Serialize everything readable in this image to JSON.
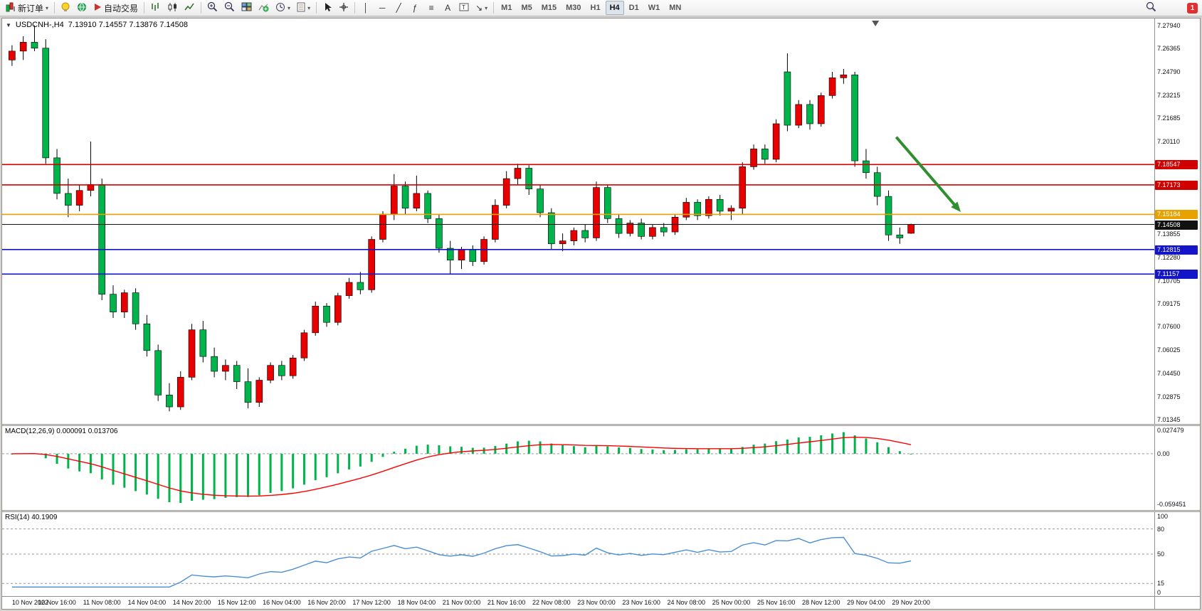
{
  "toolbar": {
    "new_order_label": "新订单",
    "auto_trading_label": "自动交易",
    "timeframes": [
      "M1",
      "M5",
      "M15",
      "M30",
      "H1",
      "H4",
      "D1",
      "W1",
      "MN"
    ],
    "active_timeframe": "H4",
    "notification_badge": "1"
  },
  "icons": {
    "dropdown_caret": "▾",
    "collapse_marker": "▼",
    "vline_tool": "│",
    "hline_tool": "─",
    "trendline_tool": "╱",
    "fibonacci_tool": "ƒ",
    "grid_tool": "≡",
    "text_tool": "A",
    "arrow_tool": "↘"
  },
  "chart": {
    "symbol_period": "USDCNH-,H4",
    "ohlc_text": "7.13910 7.14557 7.13876 7.14508"
  },
  "chart_data": {
    "type": "candlestick",
    "symbol": "USDCNH",
    "period": "H4",
    "current_candle": {
      "open": 7.1391,
      "high": 7.14557,
      "low": 7.13876,
      "close": 7.14508
    },
    "price_axis": {
      "min": 7.0105,
      "max": 7.284,
      "tick_values": [
        7.2794,
        7.26365,
        7.2479,
        7.23215,
        7.21685,
        7.2011,
        7.13855,
        7.1228,
        7.10705,
        7.09175,
        7.076,
        7.06025,
        7.0445,
        7.02875,
        7.01345
      ],
      "tick_labels": [
        "7.27940",
        "7.26365",
        "7.24790",
        "7.23215",
        "7.21685",
        "7.20110",
        "7.13855",
        "7.12280",
        "7.10705",
        "7.09175",
        "7.07600",
        "7.06025",
        "7.04450",
        "7.02875",
        "7.01345"
      ]
    },
    "levels": [
      {
        "price": 7.18547,
        "label": "7.18547",
        "color": "#d00000",
        "type": "resistance"
      },
      {
        "price": 7.17173,
        "label": "7.17173",
        "color": "#d00000",
        "type": "resistance"
      },
      {
        "price": 7.15184,
        "label": "7.15184",
        "color": "#e8a200",
        "type": "pivot"
      },
      {
        "price": 7.14508,
        "label": "7.14508",
        "color": "#111111",
        "type": "current-price"
      },
      {
        "price": 7.12815,
        "label": "7.12815",
        "color": "#1414c8",
        "type": "support"
      },
      {
        "price": 7.11157,
        "label": "7.11157",
        "color": "#1414c8",
        "type": "support"
      }
    ],
    "candles": [
      [
        7.256,
        7.266,
        7.252,
        7.262
      ],
      [
        7.262,
        7.272,
        7.256,
        7.268
      ],
      [
        7.268,
        7.2794,
        7.262,
        7.264
      ],
      [
        7.264,
        7.27,
        7.186,
        7.19
      ],
      [
        7.19,
        7.196,
        7.162,
        7.166
      ],
      [
        7.166,
        7.176,
        7.15,
        7.158
      ],
      [
        7.158,
        7.172,
        7.154,
        7.168
      ],
      [
        7.168,
        7.201,
        7.164,
        7.172
      ],
      [
        7.172,
        7.176,
        7.094,
        7.098
      ],
      [
        7.098,
        7.104,
        7.082,
        7.086
      ],
      [
        7.086,
        7.101,
        7.082,
        7.099
      ],
      [
        7.099,
        7.102,
        7.074,
        7.078
      ],
      [
        7.078,
        7.084,
        7.056,
        7.06
      ],
      [
        7.06,
        7.064,
        7.026,
        7.03
      ],
      [
        7.03,
        7.038,
        7.019,
        7.022
      ],
      [
        7.022,
        7.046,
        7.02,
        7.042
      ],
      [
        7.042,
        7.078,
        7.04,
        7.074
      ],
      [
        7.074,
        7.08,
        7.052,
        7.056
      ],
      [
        7.056,
        7.062,
        7.042,
        7.046
      ],
      [
        7.046,
        7.054,
        7.04,
        7.05
      ],
      [
        7.05,
        7.053,
        7.034,
        7.039
      ],
      [
        7.039,
        7.048,
        7.021,
        7.025
      ],
      [
        7.025,
        7.042,
        7.022,
        7.04
      ],
      [
        7.04,
        7.052,
        7.038,
        7.05
      ],
      [
        7.05,
        7.053,
        7.04,
        7.043
      ],
      [
        7.043,
        7.057,
        7.041,
        7.055
      ],
      [
        7.055,
        7.074,
        7.053,
        7.072
      ],
      [
        7.072,
        7.093,
        7.07,
        7.09
      ],
      [
        7.09,
        7.092,
        7.076,
        7.079
      ],
      [
        7.079,
        7.099,
        7.077,
        7.097
      ],
      [
        7.097,
        7.109,
        7.095,
        7.106
      ],
      [
        7.106,
        7.113,
        7.098,
        7.101
      ],
      [
        7.101,
        7.137,
        7.099,
        7.135
      ],
      [
        7.135,
        7.154,
        7.133,
        7.152
      ],
      [
        7.152,
        7.179,
        7.148,
        7.171
      ],
      [
        7.171,
        7.174,
        7.152,
        7.156
      ],
      [
        7.156,
        7.178,
        7.154,
        7.166
      ],
      [
        7.166,
        7.168,
        7.146,
        7.149
      ],
      [
        7.149,
        7.152,
        7.126,
        7.129
      ],
      [
        7.129,
        7.134,
        7.112,
        7.121
      ],
      [
        7.121,
        7.13,
        7.115,
        7.128
      ],
      [
        7.128,
        7.131,
        7.117,
        7.12
      ],
      [
        7.12,
        7.137,
        7.118,
        7.135
      ],
      [
        7.135,
        7.162,
        7.133,
        7.158
      ],
      [
        7.158,
        7.181,
        7.156,
        7.176
      ],
      [
        7.176,
        7.186,
        7.172,
        7.183
      ],
      [
        7.183,
        7.185,
        7.165,
        7.169
      ],
      [
        7.169,
        7.172,
        7.15,
        7.153
      ],
      [
        7.153,
        7.156,
        7.128,
        7.132
      ],
      [
        7.132,
        7.139,
        7.127,
        7.134
      ],
      [
        7.134,
        7.143,
        7.131,
        7.141
      ],
      [
        7.141,
        7.145,
        7.133,
        7.136
      ],
      [
        7.136,
        7.174,
        7.134,
        7.17
      ],
      [
        7.17,
        7.172,
        7.146,
        7.149
      ],
      [
        7.149,
        7.152,
        7.136,
        7.139
      ],
      [
        7.139,
        7.148,
        7.137,
        7.146
      ],
      [
        7.146,
        7.149,
        7.135,
        7.137
      ],
      [
        7.137,
        7.145,
        7.135,
        7.143
      ],
      [
        7.143,
        7.146,
        7.137,
        7.14
      ],
      [
        7.14,
        7.152,
        7.138,
        7.15
      ],
      [
        7.15,
        7.163,
        7.148,
        7.16
      ],
      [
        7.16,
        7.162,
        7.148,
        7.151
      ],
      [
        7.151,
        7.164,
        7.149,
        7.162
      ],
      [
        7.162,
        7.165,
        7.151,
        7.154
      ],
      [
        7.154,
        7.158,
        7.148,
        7.156
      ],
      [
        7.156,
        7.187,
        7.152,
        7.184
      ],
      [
        7.184,
        7.199,
        7.182,
        7.196
      ],
      [
        7.196,
        7.199,
        7.186,
        7.189
      ],
      [
        7.189,
        7.216,
        7.187,
        7.213
      ],
      [
        7.248,
        7.2605,
        7.208,
        7.212
      ],
      [
        7.212,
        7.229,
        7.21,
        7.226
      ],
      [
        7.226,
        7.229,
        7.209,
        7.213
      ],
      [
        7.213,
        7.234,
        7.211,
        7.232
      ],
      [
        7.232,
        7.248,
        7.23,
        7.244
      ],
      [
        7.244,
        7.25,
        7.24,
        7.246
      ],
      [
        7.246,
        7.248,
        7.184,
        7.188
      ],
      [
        7.188,
        7.196,
        7.176,
        7.18
      ],
      [
        7.18,
        7.184,
        7.158,
        7.164
      ],
      [
        7.164,
        7.168,
        7.134,
        7.138
      ],
      [
        7.138,
        7.143,
        7.132,
        7.136
      ],
      [
        7.1391,
        7.14557,
        7.13876,
        7.14508
      ]
    ],
    "time_labels": [
      "10 Nov 2022",
      "10 Nov 16:00",
      "11 Nov 08:00",
      "14 Nov 04:00",
      "14 Nov 20:00",
      "15 Nov 12:00",
      "16 Nov 04:00",
      "16 Nov 20:00",
      "17 Nov 12:00",
      "18 Nov 04:00",
      "21 Nov 00:00",
      "21 Nov 16:00",
      "22 Nov 08:00",
      "23 Nov 00:00",
      "23 Nov 16:00",
      "24 Nov 08:00",
      "25 Nov 00:00",
      "25 Nov 16:00",
      "28 Nov 12:00",
      "29 Nov 04:00",
      "29 Nov 20:00"
    ],
    "annotation_arrow": {
      "color": "#2f8f2f",
      "x1_frac": 0.776,
      "price1": 7.204,
      "x2_frac": 0.832,
      "price2": 7.1535
    },
    "shift_marker_x_frac": 0.758,
    "macd": {
      "label": "MACD(12,26,9) 0.000091 0.013706",
      "fast": 12,
      "slow": 26,
      "signal": 9,
      "value": 9.1e-05,
      "signal_value": 0.013706,
      "range": [
        -0.066,
        0.0325
      ],
      "tick_values": [
        0.027479,
        0,
        -0.059451
      ],
      "tick_labels": [
        "0.027479",
        "0.00",
        "-0.059451"
      ]
    },
    "rsi": {
      "label": "RSI(14) 40.1909",
      "period": 14,
      "value": 40.1909,
      "range": [
        0,
        100
      ],
      "levels": [
        80,
        50,
        15
      ],
      "tick_values": [
        100,
        80,
        50,
        15,
        0
      ],
      "tick_labels": [
        "100",
        "80",
        "50",
        "15",
        "0"
      ]
    },
    "colors": {
      "up": "#e80000",
      "down": "#00b44c",
      "wick": "#000000",
      "macd_histogram": "#00b44c",
      "macd_signal": "#ff0000",
      "rsi_line": "#4a8fd3",
      "grid_dash": "#999999",
      "background": "#ffffff"
    }
  }
}
